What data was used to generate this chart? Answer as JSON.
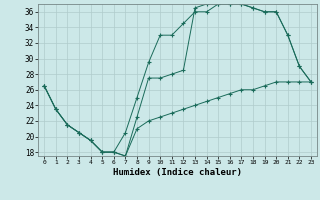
{
  "xlabel": "Humidex (Indice chaleur)",
  "background_color": "#cce8e8",
  "grid_color": "#b0cccc",
  "line_color": "#1a6b5a",
  "xlim": [
    -0.5,
    23.5
  ],
  "ylim": [
    17.5,
    37.0
  ],
  "xticks": [
    0,
    1,
    2,
    3,
    4,
    5,
    6,
    7,
    8,
    9,
    10,
    11,
    12,
    13,
    14,
    15,
    16,
    17,
    18,
    19,
    20,
    21,
    22,
    23
  ],
  "yticks": [
    18,
    20,
    22,
    24,
    26,
    28,
    30,
    32,
    34,
    36
  ],
  "line1_x": [
    0,
    1,
    2,
    3,
    4,
    5,
    6,
    7,
    8,
    9,
    10,
    11,
    12,
    13,
    14,
    15,
    16,
    17,
    18,
    19,
    20,
    21,
    22,
    23
  ],
  "line1_y": [
    26.5,
    23.5,
    21.5,
    20.5,
    19.5,
    18.0,
    18.0,
    20.5,
    25.0,
    29.5,
    33.0,
    33.0,
    34.5,
    36.0,
    36.0,
    37.0,
    37.0,
    37.0,
    36.5,
    36.0,
    36.0,
    33.0,
    29.0,
    27.0
  ],
  "line2_x": [
    0,
    1,
    2,
    3,
    4,
    5,
    6,
    7,
    8,
    9,
    10,
    11,
    12,
    13,
    14,
    15,
    16,
    17,
    18,
    19,
    20,
    21,
    22,
    23
  ],
  "line2_y": [
    26.5,
    23.5,
    21.5,
    20.5,
    19.5,
    18.0,
    18.0,
    17.5,
    22.5,
    27.5,
    27.5,
    28.0,
    28.5,
    36.5,
    37.0,
    37.0,
    37.0,
    37.0,
    36.5,
    36.0,
    36.0,
    33.0,
    29.0,
    27.0
  ],
  "line3_x": [
    0,
    1,
    2,
    3,
    4,
    5,
    6,
    7,
    8,
    9,
    10,
    11,
    12,
    13,
    14,
    15,
    16,
    17,
    18,
    19,
    20,
    21,
    22,
    23
  ],
  "line3_y": [
    26.5,
    23.5,
    21.5,
    20.5,
    19.5,
    18.0,
    18.0,
    17.5,
    21.0,
    22.0,
    22.5,
    23.0,
    23.5,
    24.0,
    24.5,
    25.0,
    25.5,
    26.0,
    26.0,
    26.5,
    27.0,
    27.0,
    27.0,
    27.0
  ]
}
